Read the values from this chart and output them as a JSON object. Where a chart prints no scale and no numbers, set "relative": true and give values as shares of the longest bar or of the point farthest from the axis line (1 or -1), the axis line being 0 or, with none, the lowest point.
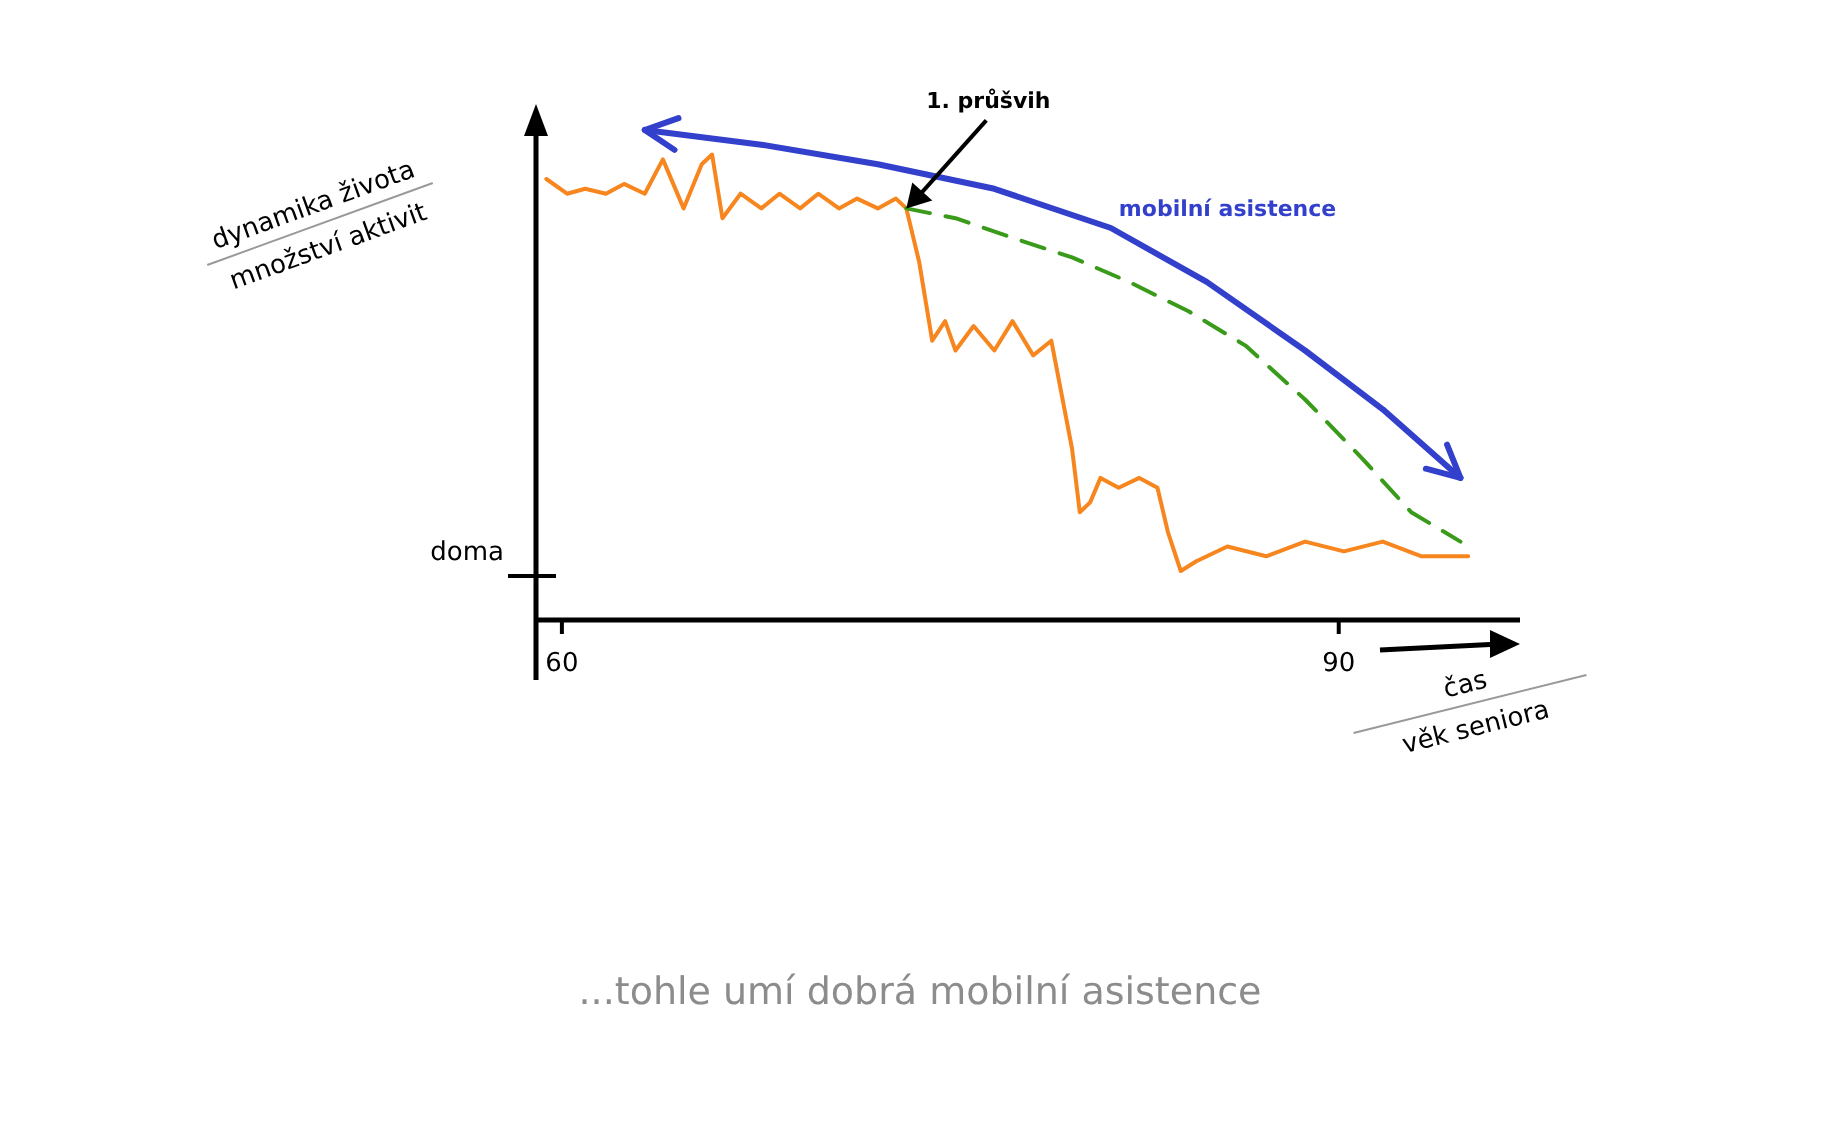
{
  "chart_data": {
    "type": "line",
    "relative": true,
    "ylabel": "dynamika života\nmnožství aktivit",
    "xlabel": "čas\nvěk seniora",
    "xlim": [
      59,
      97
    ],
    "xticks": [
      60,
      90
    ],
    "ref_lines": [
      {
        "axis": "y",
        "value": 0.09,
        "label": "doma"
      }
    ],
    "annotations": [
      {
        "text": "1. průšvih",
        "x": 73.3,
        "y": 0.84
      },
      "...tohle umí dobrá mobilní asistence"
    ],
    "series": [
      {
        "color": "#f7861e",
        "line_style": "solid",
        "x": [
          59.4,
          60.2,
          60.9,
          61.7,
          62.4,
          63.2,
          63.9,
          64.7,
          65.4,
          65.8,
          66.2,
          66.9,
          67.7,
          68.4,
          69.2,
          69.9,
          70.7,
          71.4,
          72.2,
          72.9,
          73.3,
          73.8,
          74.3,
          74.8,
          75.2,
          75.9,
          76.7,
          77.4,
          78.2,
          78.9,
          79.7,
          80.0,
          80.4,
          80.8,
          81.5,
          82.3,
          83.0,
          83.4,
          83.9,
          84.5,
          85.7,
          87.2,
          88.7,
          90.2,
          91.7,
          93.2,
          95.0
        ],
        "values": [
          0.9,
          0.87,
          0.88,
          0.87,
          0.89,
          0.87,
          0.94,
          0.84,
          0.93,
          0.95,
          0.82,
          0.87,
          0.84,
          0.87,
          0.84,
          0.87,
          0.84,
          0.86,
          0.84,
          0.86,
          0.84,
          0.73,
          0.57,
          0.61,
          0.55,
          0.6,
          0.55,
          0.61,
          0.54,
          0.57,
          0.35,
          0.22,
          0.24,
          0.29,
          0.27,
          0.29,
          0.27,
          0.18,
          0.1,
          0.12,
          0.15,
          0.13,
          0.16,
          0.14,
          0.16,
          0.13,
          0.13
        ]
      },
      {
        "color": "#3a9a1a",
        "line_style": "dashed",
        "x": [
          73.3,
          75.2,
          77.4,
          79.7,
          81.9,
          84.2,
          86.4,
          88.7,
          90.9,
          92.8,
          94.7
        ],
        "values": [
          0.84,
          0.82,
          0.78,
          0.74,
          0.69,
          0.63,
          0.56,
          0.45,
          0.33,
          0.22,
          0.16
        ]
      },
      {
        "name": "mobilní asistence",
        "color": "#3340cc",
        "line_style": "solid",
        "x": [
          63.2,
          67.7,
          72.2,
          76.7,
          81.2,
          84.9,
          88.7,
          91.7,
          94.7
        ],
        "values": [
          1.0,
          0.97,
          0.93,
          0.88,
          0.8,
          0.69,
          0.55,
          0.43,
          0.29
        ]
      }
    ]
  }
}
